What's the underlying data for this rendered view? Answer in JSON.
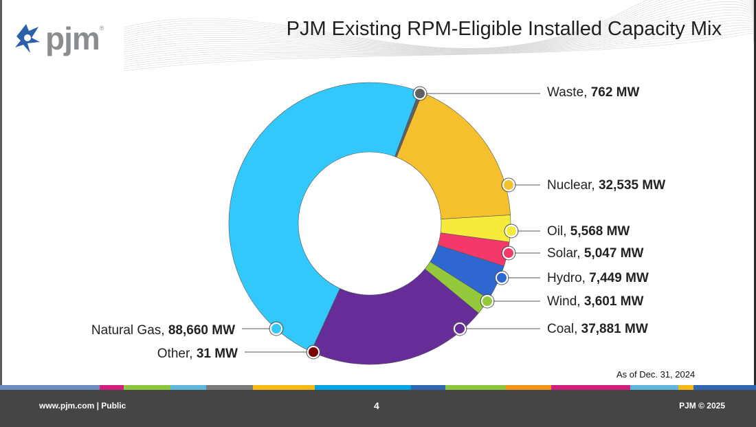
{
  "slide": {
    "title": "PJM Existing RPM-Eligible Installed Capacity Mix",
    "logo_text": "pjm",
    "logo_mark": "®",
    "as_of": "As of Dec. 31, 2024",
    "footer_left": "www.pjm.com | Public",
    "page_number": "4",
    "footer_right": "PJM © 2025"
  },
  "colors": {
    "footer_bg": "#444547",
    "stripe": [
      "#6b8cbf",
      "#d11f7c",
      "#8dc63f",
      "#5fb6dc",
      "#7b7b7b",
      "#f5b915",
      "#00a4e0",
      "#2f67b1",
      "#8dc63f",
      "#f7941d",
      "#d11f7c",
      "#5fb6dc",
      "#f5b915",
      "#2f67b1"
    ]
  },
  "chart_data": {
    "type": "pie",
    "title": "PJM Existing RPM-Eligible Installed Capacity Mix",
    "unit": "MW",
    "slices": [
      {
        "name": "Waste",
        "value": 762,
        "display": "762 MW",
        "color": "#5f6062"
      },
      {
        "name": "Nuclear",
        "value": 32535,
        "display": "32,535 MW",
        "color": "#f4c02e"
      },
      {
        "name": "Oil",
        "value": 5568,
        "display": "5,568 MW",
        "color": "#f6ea3c"
      },
      {
        "name": "Solar",
        "value": 5047,
        "display": "5,047 MW",
        "color": "#f5386a"
      },
      {
        "name": "Hydro",
        "value": 7449,
        "display": "7,449 MW",
        "color": "#2e67cf"
      },
      {
        "name": "Wind",
        "value": 3601,
        "display": "3,601 MW",
        "color": "#95c93d"
      },
      {
        "name": "Coal",
        "value": 37881,
        "display": "37,881 MW",
        "color": "#662d99"
      },
      {
        "name": "Other",
        "value": 31,
        "display": "31 MW",
        "color": "#7a0000"
      },
      {
        "name": "Natural Gas",
        "value": 88660,
        "display": "88,660 MW",
        "color": "#33c8fb"
      }
    ]
  }
}
